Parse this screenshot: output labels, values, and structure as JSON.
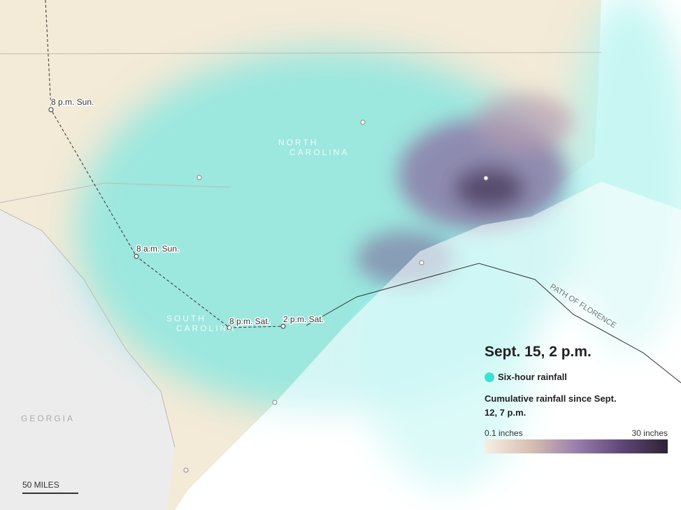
{
  "map": {
    "track_labels": [
      "8 p.m. Sun.",
      "8 a.m. Sun.",
      "8 p.m. Sat.",
      "2 p.m. Sat."
    ],
    "states": [
      "NORTH",
      "CAROLINA",
      "SOUTH",
      "CAROLINA",
      "GEORGIA"
    ],
    "path_label": "PATH OF FLORENCE",
    "scale": "50 MILES"
  },
  "legend": {
    "time": "Sept. 15, 2 p.m.",
    "six_hour": "Six-hour rainfall",
    "cumulative": "Cumulative rainfall since Sept. 12, 7 p.m.",
    "min": "0.1 inches",
    "max": "30 inches"
  }
}
